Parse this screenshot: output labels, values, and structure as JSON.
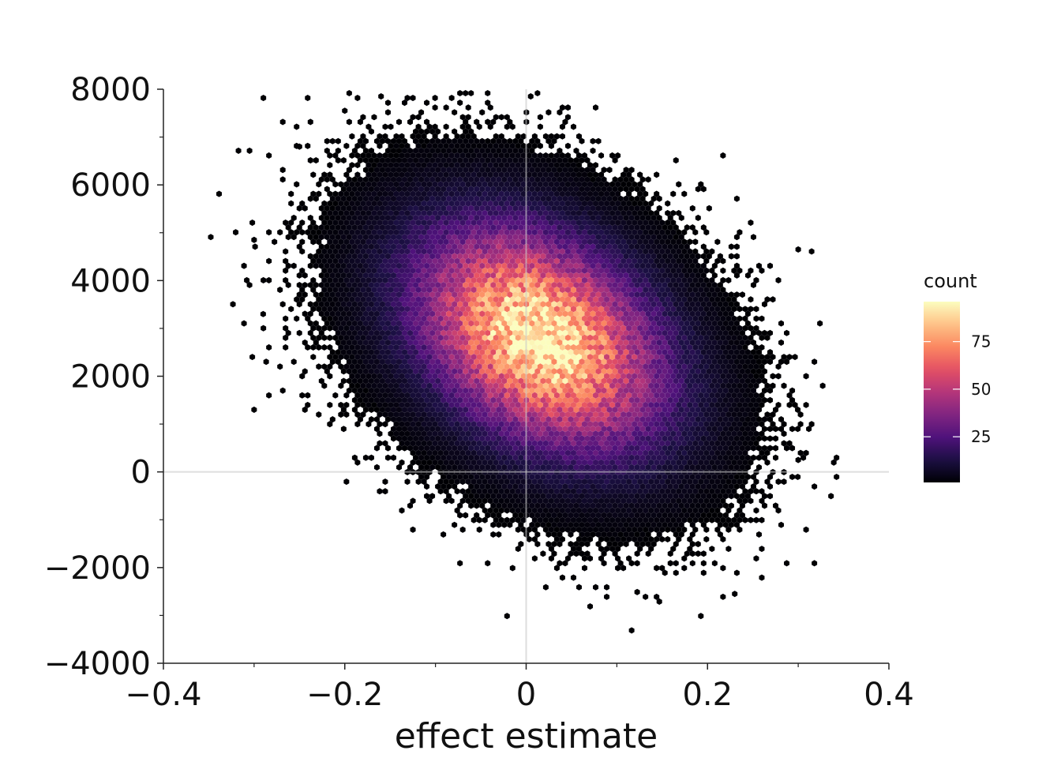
{
  "chart_data": {
    "type": "hexbin",
    "title": "",
    "xlabel": "effect estimate",
    "ylabel": "",
    "xlim": [
      -0.4,
      0.4
    ],
    "ylim": [
      -4000,
      8000
    ],
    "x_ticks": [
      -0.4,
      -0.2,
      0,
      0.2,
      0.4
    ],
    "x_tick_labels": [
      "−0.4",
      "−0.2",
      "0",
      "0.2",
      "0.4"
    ],
    "y_ticks": [
      -4000,
      -2000,
      0,
      2000,
      4000,
      6000,
      8000
    ],
    "y_tick_labels": [
      "−4000",
      "−2000",
      "0",
      "2000",
      "4000",
      "6000",
      "8000"
    ],
    "reference_lines": {
      "x": 0,
      "y": 0
    },
    "grid": false,
    "density_model": {
      "center": [
        0.015,
        2800
      ],
      "sd_x": 0.085,
      "sd_y": 1450,
      "correlation": -0.35,
      "peak_count": 96,
      "outliers": [
        [
          -0.3,
          4850
        ],
        [
          -0.29,
          3300
        ],
        [
          -0.3,
          1300
        ],
        [
          0.23,
          -2550
        ],
        [
          0.3,
          250
        ],
        [
          0.3,
          4650
        ],
        [
          -0.16,
          7850
        ],
        [
          0.005,
          7850
        ],
        [
          -0.2,
          7550
        ],
        [
          -0.25,
          6800
        ]
      ]
    },
    "legend": {
      "title": "count",
      "position": "right",
      "ticks": [
        25,
        50,
        75
      ],
      "min": 1,
      "max": 96,
      "colormap": "magma",
      "colors": [
        "#000004",
        "#1c1044",
        "#4f127b",
        "#812581",
        "#b5367a",
        "#e55064",
        "#fb8761",
        "#fec287",
        "#fcfdbf"
      ]
    }
  }
}
